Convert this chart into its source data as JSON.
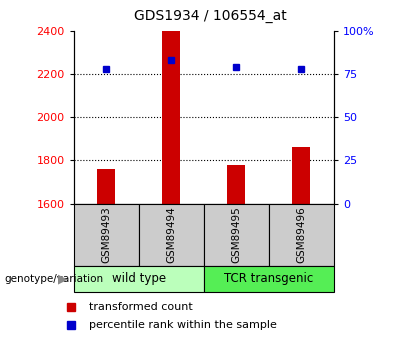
{
  "title": "GDS1934 / 106554_at",
  "samples": [
    "GSM89493",
    "GSM89494",
    "GSM89495",
    "GSM89496"
  ],
  "red_values": [
    1760,
    2400,
    1780,
    1860
  ],
  "blue_percentiles": [
    78,
    83,
    79,
    78
  ],
  "ylim_left": [
    1600,
    2400
  ],
  "ylim_right": [
    0,
    100
  ],
  "yticks_left": [
    1600,
    1800,
    2000,
    2200,
    2400
  ],
  "yticks_right": [
    0,
    25,
    50,
    75,
    100
  ],
  "ytick_labels_right": [
    "0",
    "25",
    "50",
    "75",
    "100%"
  ],
  "groups": [
    {
      "label": "wild type",
      "samples": [
        0,
        1
      ],
      "color": "#bbffbb"
    },
    {
      "label": "TCR transgenic",
      "samples": [
        2,
        3
      ],
      "color": "#55ee55"
    }
  ],
  "bar_color": "#cc0000",
  "dot_color": "#0000cc",
  "sample_bg_color": "#cccccc",
  "legend_red_label": "transformed count",
  "legend_blue_label": "percentile rank within the sample",
  "genotype_label": "genotype/variation",
  "bar_width": 0.28
}
